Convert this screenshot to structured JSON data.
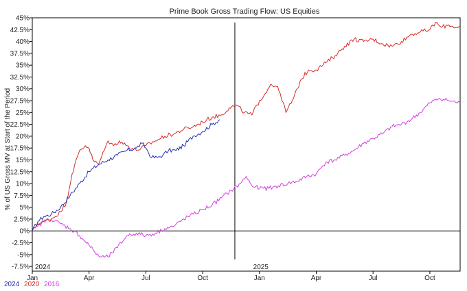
{
  "chart_data": {
    "type": "line",
    "title": "Prime Book Gross Trading Flow: US Equities",
    "ylabel": "% of US Gross MV at Start of the Period",
    "xlabel": "",
    "ylim": [
      -8.5,
      45
    ],
    "xlim": [
      0,
      22.6
    ],
    "y_ticks": [
      45,
      42.5,
      40,
      37.5,
      35,
      32.5,
      30,
      27.5,
      25,
      22.5,
      20,
      17.5,
      15,
      12.5,
      10,
      7.5,
      5,
      2.5,
      0,
      -2.5,
      -5,
      -7.5
    ],
    "y_tick_labels": [
      "45%",
      "42.5%",
      "40%",
      "37.5%",
      "35%",
      "32.5%",
      "30%",
      "27.5%",
      "25%",
      "22.5%",
      "20%",
      "17.5%",
      "15%",
      "12.5%",
      "10%",
      "7.5%",
      "5%",
      "2.5%",
      "0%",
      "-2.5%",
      "-5%",
      "-7.5%"
    ],
    "x_ticks": [
      {
        "x": 0,
        "label": "Jan"
      },
      {
        "x": 3,
        "label": "Apr"
      },
      {
        "x": 6,
        "label": "Jul"
      },
      {
        "x": 9,
        "label": "Oct"
      },
      {
        "x": 12,
        "label": "Jan"
      },
      {
        "x": 15,
        "label": "Apr"
      },
      {
        "x": 18,
        "label": "Jul"
      },
      {
        "x": 21,
        "label": "Oct"
      }
    ],
    "year_labels": [
      {
        "x": 0,
        "label": "2024"
      },
      {
        "x": 12,
        "label": "2025"
      }
    ],
    "vline_x": 10.7,
    "vline_range": [
      -6,
      44
    ],
    "grid": false,
    "legend_position": "bottom-left",
    "colors": {
      "2024": "#1f2fb5",
      "2020": "#d62a2a",
      "2016": "#d43de0"
    },
    "series": [
      {
        "name": "2024",
        "x": [
          0,
          0.3,
          0.6,
          1.0,
          1.5,
          2.0,
          2.5,
          3.0,
          3.5,
          4.0,
          4.5,
          5.0,
          5.5,
          5.8,
          6.0,
          6.3,
          6.6,
          6.9,
          7.2,
          7.6,
          8.0,
          8.5,
          9.0,
          9.5,
          9.9
        ],
        "y": [
          0,
          2.0,
          3.0,
          3.5,
          5.0,
          7.5,
          10.0,
          12.5,
          14.0,
          15.0,
          16.0,
          17.0,
          17.5,
          18.5,
          17.5,
          15.5,
          15.5,
          16.0,
          17.0,
          17.0,
          18.0,
          20.0,
          21.0,
          22.5,
          23.5
        ]
      },
      {
        "name": "2020",
        "x": [
          0,
          0.3,
          0.6,
          1.0,
          1.5,
          1.8,
          2.1,
          2.5,
          2.8,
          3.0,
          3.2,
          3.5,
          3.8,
          4.0,
          4.3,
          4.6,
          5.0,
          5.5,
          6.0,
          6.5,
          7.0,
          7.5,
          8.0,
          8.5,
          9.0,
          9.5,
          10.0,
          10.4,
          10.8,
          11.2,
          11.6,
          12.0,
          12.3,
          12.6,
          12.9,
          13.1,
          13.4,
          13.8,
          14.2,
          14.6,
          15.0,
          15.5,
          16.0,
          16.5,
          17.0,
          17.5,
          18.0,
          18.5,
          19.0,
          19.5,
          20.0,
          20.5,
          21.0,
          21.3,
          21.6,
          22.0,
          22.4,
          22.6
        ],
        "y": [
          0,
          1.5,
          2.0,
          2.5,
          4.0,
          6.0,
          12.0,
          17.0,
          18.0,
          17.5,
          15.0,
          14.0,
          17.0,
          19.0,
          18.0,
          19.0,
          18.0,
          17.0,
          18.0,
          19.0,
          20.0,
          20.5,
          21.5,
          22.0,
          23.0,
          24.0,
          24.5,
          26.0,
          26.5,
          25.0,
          24.5,
          27.5,
          29.0,
          31.0,
          30.5,
          29.0,
          25.0,
          28.0,
          32.0,
          34.0,
          34.0,
          35.5,
          37.0,
          39.0,
          40.5,
          40.0,
          40.5,
          39.5,
          39.0,
          40.0,
          41.5,
          42.0,
          42.5,
          44.0,
          43.0,
          43.5,
          43.0,
          43.0
        ]
      },
      {
        "name": "2016",
        "x": [
          0,
          0.3,
          0.6,
          1.0,
          1.5,
          2.0,
          2.5,
          3.0,
          3.3,
          3.6,
          4.0,
          4.5,
          5.0,
          5.5,
          6.0,
          6.5,
          7.0,
          7.5,
          8.0,
          8.5,
          9.0,
          9.5,
          10.0,
          10.5,
          11.0,
          11.3,
          11.6,
          12.0,
          12.5,
          13.0,
          13.5,
          14.0,
          14.5,
          15.0,
          15.5,
          16.0,
          16.5,
          17.0,
          17.5,
          18.0,
          18.5,
          19.0,
          19.5,
          20.0,
          20.5,
          21.0,
          21.5,
          22.0,
          22.6
        ],
        "y": [
          0,
          1.0,
          2.0,
          2.5,
          1.5,
          0.5,
          -1.0,
          -3.0,
          -4.5,
          -5.5,
          -5.5,
          -3.5,
          -1.0,
          -0.5,
          -1.0,
          -0.5,
          0.5,
          1.0,
          2.5,
          3.5,
          4.5,
          5.5,
          7.0,
          8.5,
          10.0,
          11.5,
          9.5,
          9.0,
          9.0,
          9.5,
          10.0,
          10.5,
          11.5,
          12.0,
          14.5,
          15.0,
          16.0,
          17.0,
          18.5,
          19.5,
          20.5,
          22.0,
          22.5,
          23.5,
          25.0,
          27.0,
          28.0,
          27.5,
          27.0
        ]
      }
    ]
  }
}
